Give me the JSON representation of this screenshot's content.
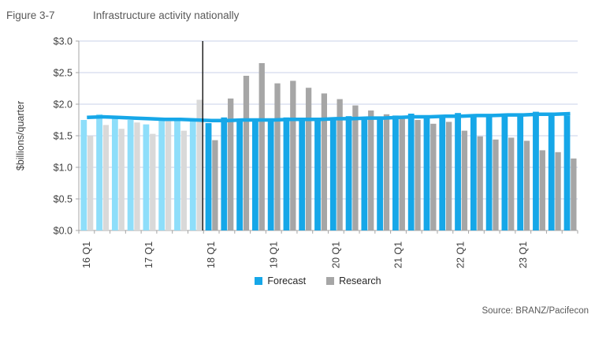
{
  "figure": {
    "label": "Figure 3-7",
    "title": "Infrastructure activity nationally"
  },
  "source_text": "Source: BRANZ/Pacifecon",
  "legend": [
    {
      "label": "Forecast",
      "color": "#16A7E8"
    },
    {
      "label": "Research",
      "color": "#A6A6A6"
    }
  ],
  "colors": {
    "forecast_bar": "#16A7E8",
    "research_bar": "#A6A6A6",
    "forecast_bar_history": "#8EDEFA",
    "research_bar_history": "#D9D9D9",
    "trend_line": "#16A7E8",
    "gridline": "#C9D2E8",
    "axis": "#A6A6A6",
    "divider": "#000000",
    "axis_text": "#404040"
  },
  "chart_data": {
    "type": "bar",
    "title": "Infrastructure activity nationally",
    "xlabel": "",
    "ylabel": "$billions/quarter",
    "ylim": [
      0,
      3.0
    ],
    "ytick_step": 0.5,
    "ytick_prefix": "$",
    "grid": true,
    "legend_position": "bottom",
    "categories": [
      "16 Q1",
      "16 Q2",
      "16 Q3",
      "16 Q4",
      "17 Q1",
      "17 Q2",
      "17 Q3",
      "17 Q4",
      "18 Q1",
      "18 Q2",
      "18 Q3",
      "18 Q4",
      "19 Q1",
      "19 Q2",
      "19 Q3",
      "19 Q4",
      "20 Q1",
      "20 Q2",
      "20 Q3",
      "20 Q4",
      "21 Q1",
      "21 Q2",
      "21 Q3",
      "21 Q4",
      "22 Q1",
      "22 Q2",
      "22 Q3",
      "22 Q4",
      "23 Q1",
      "23 Q2",
      "23 Q3",
      "23 Q4"
    ],
    "xtick_labels_shown": [
      "16 Q1",
      "17 Q1",
      "18 Q1",
      "19 Q1",
      "20 Q1",
      "21 Q1",
      "22 Q1",
      "23 Q1"
    ],
    "history_end_index": 7,
    "divider_note": "vertical black line between 17 Q4 and 18 Q1 marks start of forecast period; bars left of it are drawn in lighter shades",
    "series": [
      {
        "name": "Forecast",
        "render": "bar",
        "values": [
          1.75,
          1.84,
          1.79,
          1.75,
          1.68,
          1.76,
          1.74,
          1.73,
          1.7,
          1.79,
          1.77,
          1.76,
          1.74,
          1.79,
          1.77,
          1.77,
          1.75,
          1.81,
          1.79,
          1.78,
          1.82,
          1.85,
          1.81,
          1.81,
          1.86,
          1.81,
          1.82,
          1.82,
          1.81,
          1.88,
          1.83,
          1.82
        ]
      },
      {
        "name": "Research",
        "render": "bar",
        "values": [
          1.5,
          1.67,
          1.61,
          1.71,
          1.53,
          1.73,
          1.58,
          2.07,
          1.43,
          2.09,
          2.45,
          2.65,
          2.33,
          2.37,
          2.26,
          2.17,
          2.08,
          1.98,
          1.9,
          1.84,
          1.78,
          1.75,
          1.69,
          1.72,
          1.58,
          1.49,
          1.44,
          1.47,
          1.42,
          1.27,
          1.24,
          1.14
        ]
      },
      {
        "name": "Forecast trend line",
        "render": "line",
        "values": [
          1.79,
          1.8,
          1.79,
          1.78,
          1.77,
          1.76,
          1.76,
          1.75,
          1.74,
          1.74,
          1.75,
          1.75,
          1.75,
          1.76,
          1.76,
          1.76,
          1.77,
          1.77,
          1.78,
          1.78,
          1.79,
          1.8,
          1.8,
          1.81,
          1.81,
          1.82,
          1.82,
          1.83,
          1.83,
          1.84,
          1.84,
          1.85
        ]
      }
    ]
  }
}
